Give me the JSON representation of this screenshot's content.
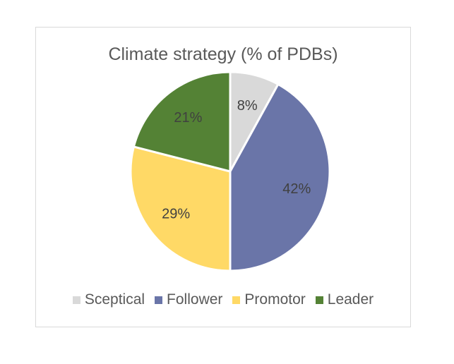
{
  "chart_data": {
    "type": "pie",
    "title": "Climate strategy (% of PDBs)",
    "categories": [
      "Sceptical",
      "Follower",
      "Promotor",
      "Leader"
    ],
    "values": [
      8,
      42,
      29,
      21
    ],
    "labels": [
      "8%",
      "42%",
      "29%",
      "21%"
    ],
    "colors": [
      "#d9d9d9",
      "#6a75a8",
      "#ffd966",
      "#548235"
    ],
    "legend_position": "bottom"
  }
}
